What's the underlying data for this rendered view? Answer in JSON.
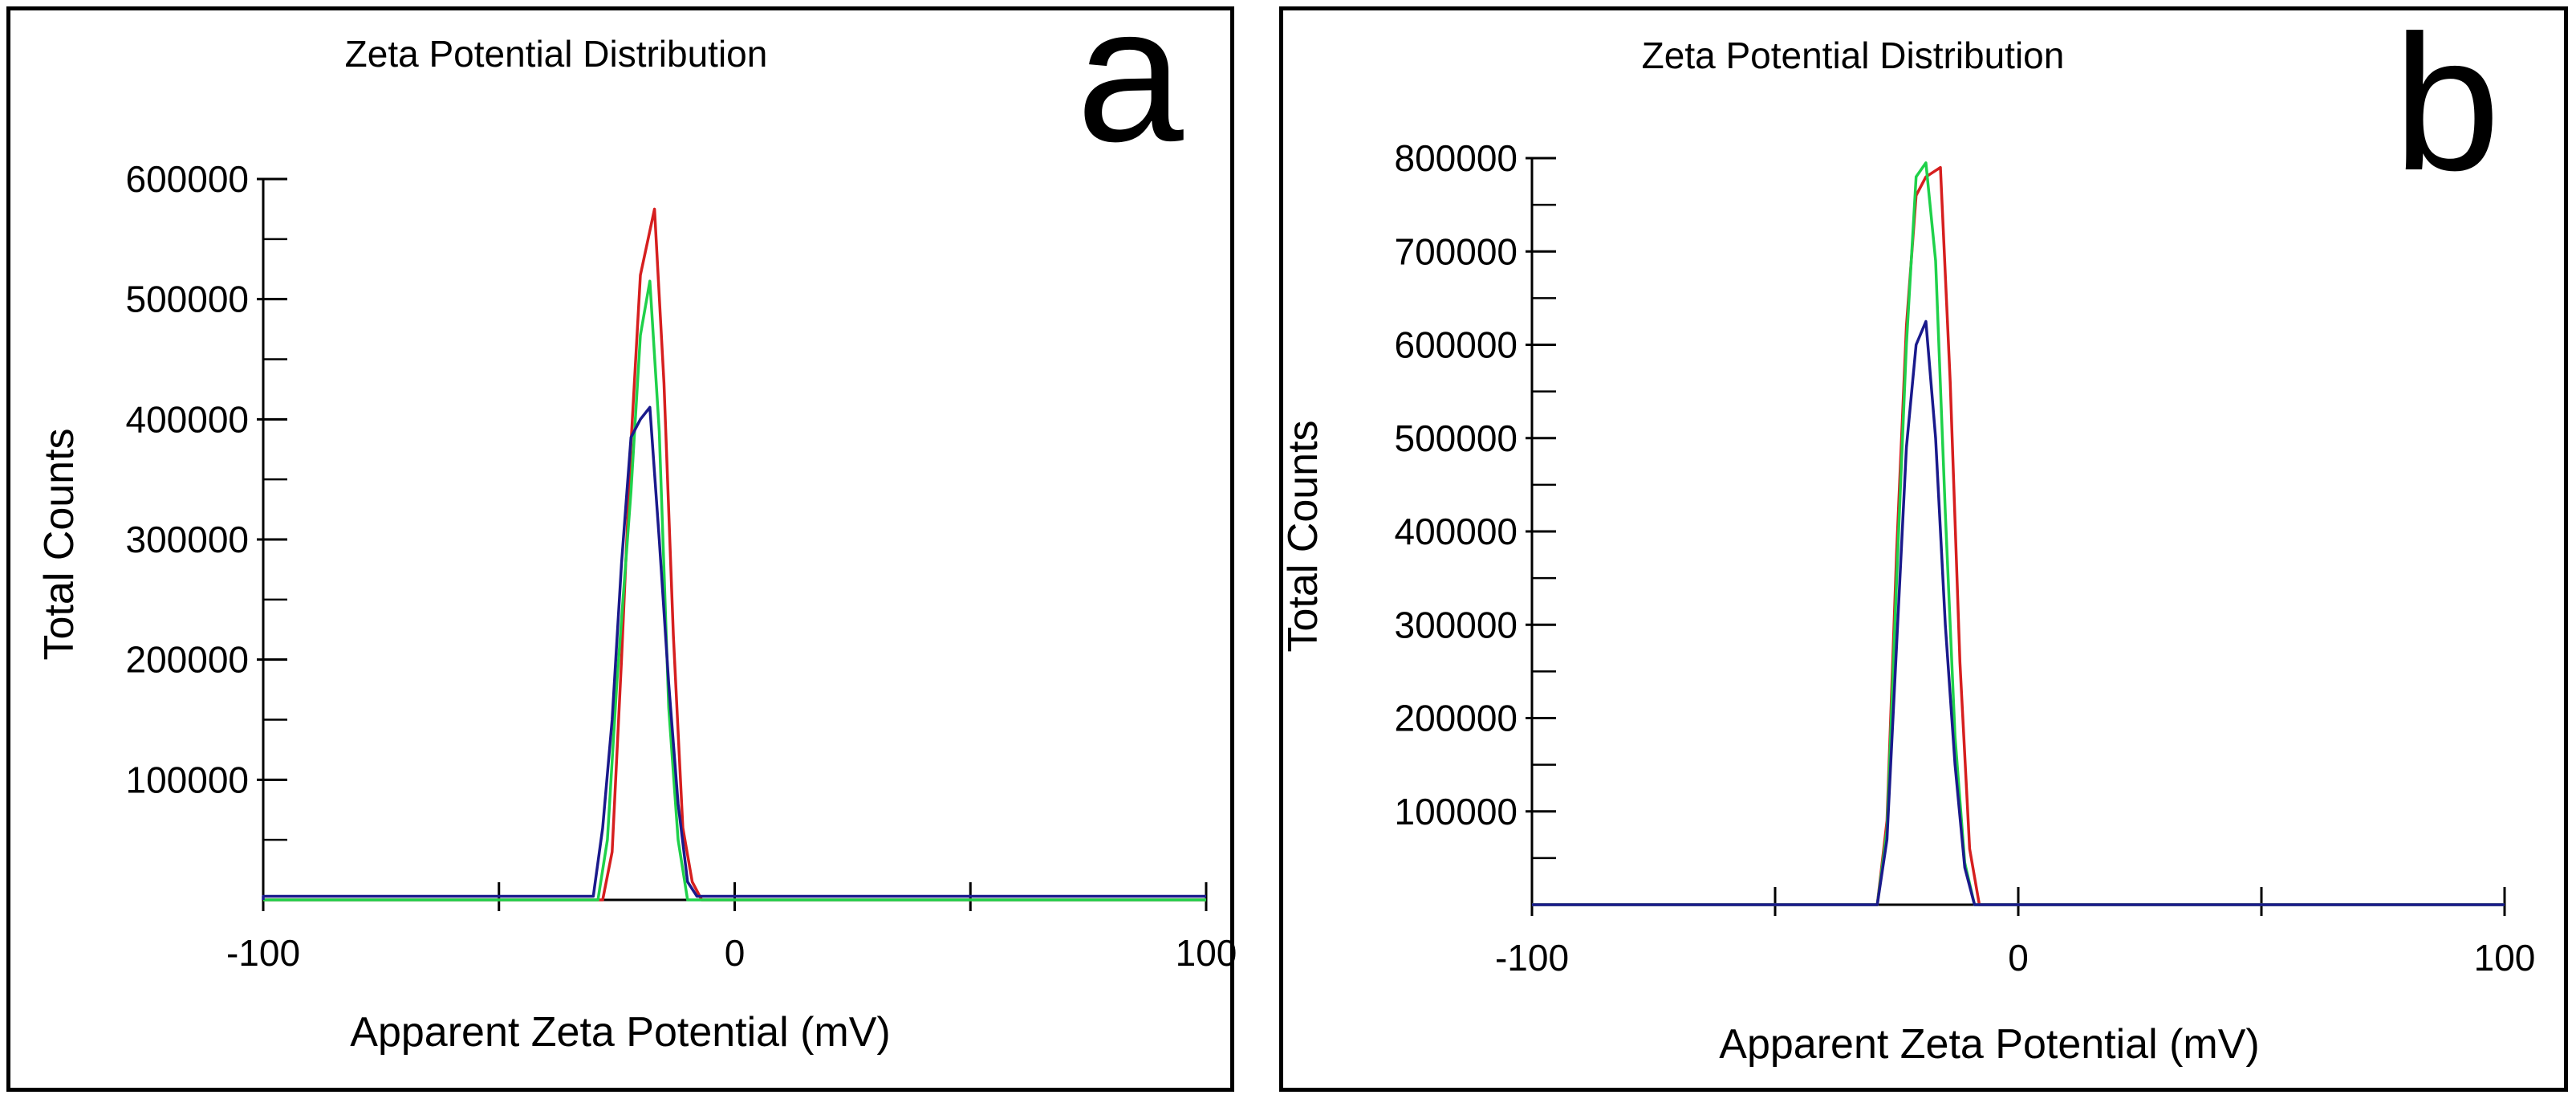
{
  "panels": [
    {
      "letter": "a",
      "chart_data": {
        "type": "line",
        "title": "Zeta Potential Distribution",
        "xlabel": "Apparent Zeta Potential (mV)",
        "ylabel": "Total Counts",
        "xlim": [
          -100,
          100
        ],
        "ylim": [
          0,
          600000
        ],
        "x_ticks": [
          -100,
          0,
          100
        ],
        "x_minor_ticks": [
          -50,
          50
        ],
        "y_ticks": [
          100000,
          200000,
          300000,
          400000,
          500000,
          600000
        ],
        "y_minor_step": 50000,
        "grid": false,
        "series": [
          {
            "color": "#d61f1f",
            "points": [
              [
                -100,
                0
              ],
              [
                -28,
                0
              ],
              [
                -26,
                40000
              ],
              [
                -24,
                200000
              ],
              [
                -22,
                380000
              ],
              [
                -20,
                520000
              ],
              [
                -17,
                575000
              ],
              [
                -15,
                430000
              ],
              [
                -13,
                220000
              ],
              [
                -11,
                60000
              ],
              [
                -9,
                15000
              ],
              [
                -7,
                0
              ],
              [
                100,
                0
              ]
            ]
          },
          {
            "color": "#1fd14a",
            "points": [
              [
                -100,
                0
              ],
              [
                -29,
                0
              ],
              [
                -27,
                50000
              ],
              [
                -25,
                180000
              ],
              [
                -22,
                340000
              ],
              [
                -20,
                470000
              ],
              [
                -18,
                515000
              ],
              [
                -16,
                390000
              ],
              [
                -14,
                160000
              ],
              [
                -12,
                50000
              ],
              [
                -10,
                0
              ],
              [
                100,
                0
              ]
            ]
          },
          {
            "color": "#1a1a8c",
            "points": [
              [
                -100,
                0
              ],
              [
                -100,
                3000
              ],
              [
                -30,
                3000
              ],
              [
                -28,
                60000
              ],
              [
                -26,
                150000
              ],
              [
                -24,
                280000
              ],
              [
                -22,
                385000
              ],
              [
                -20,
                400000
              ],
              [
                -18,
                410000
              ],
              [
                -16,
                300000
              ],
              [
                -14,
                180000
              ],
              [
                -12,
                80000
              ],
              [
                -10,
                15000
              ],
              [
                -8,
                3000
              ],
              [
                100,
                3000
              ]
            ]
          }
        ]
      }
    },
    {
      "letter": "b",
      "chart_data": {
        "type": "line",
        "title": "Zeta Potential Distribution",
        "xlabel": "Apparent Zeta Potential (mV)",
        "ylabel": "Total Counts",
        "xlim": [
          -100,
          100
        ],
        "ylim": [
          0,
          800000
        ],
        "x_ticks": [
          -100,
          0,
          100
        ],
        "x_minor_ticks": [
          -50,
          50
        ],
        "y_ticks": [
          100000,
          200000,
          300000,
          400000,
          500000,
          600000,
          700000,
          800000
        ],
        "y_minor_step": 50000,
        "grid": false,
        "series": [
          {
            "color": "#d61f1f",
            "points": [
              [
                -100,
                0
              ],
              [
                -29,
                0
              ],
              [
                -27,
                90000
              ],
              [
                -25,
                380000
              ],
              [
                -23,
                620000
              ],
              [
                -21,
                760000
              ],
              [
                -19,
                780000
              ],
              [
                -16,
                790000
              ],
              [
                -14,
                560000
              ],
              [
                -12,
                260000
              ],
              [
                -10,
                60000
              ],
              [
                -8,
                0
              ],
              [
                100,
                0
              ]
            ]
          },
          {
            "color": "#1fd14a",
            "points": [
              [
                -100,
                0
              ],
              [
                -29,
                0
              ],
              [
                -27,
                80000
              ],
              [
                -25,
                350000
              ],
              [
                -23,
                600000
              ],
              [
                -21,
                780000
              ],
              [
                -19,
                795000
              ],
              [
                -17,
                690000
              ],
              [
                -15,
                420000
              ],
              [
                -13,
                180000
              ],
              [
                -11,
                45000
              ],
              [
                -9,
                0
              ],
              [
                100,
                0
              ]
            ]
          },
          {
            "color": "#1a1a8c",
            "points": [
              [
                -100,
                0
              ],
              [
                -29,
                0
              ],
              [
                -27,
                70000
              ],
              [
                -25,
                280000
              ],
              [
                -23,
                490000
              ],
              [
                -21,
                600000
              ],
              [
                -19,
                625000
              ],
              [
                -17,
                500000
              ],
              [
                -15,
                300000
              ],
              [
                -13,
                150000
              ],
              [
                -11,
                40000
              ],
              [
                -9,
                0
              ],
              [
                100,
                0
              ]
            ]
          }
        ]
      }
    }
  ]
}
